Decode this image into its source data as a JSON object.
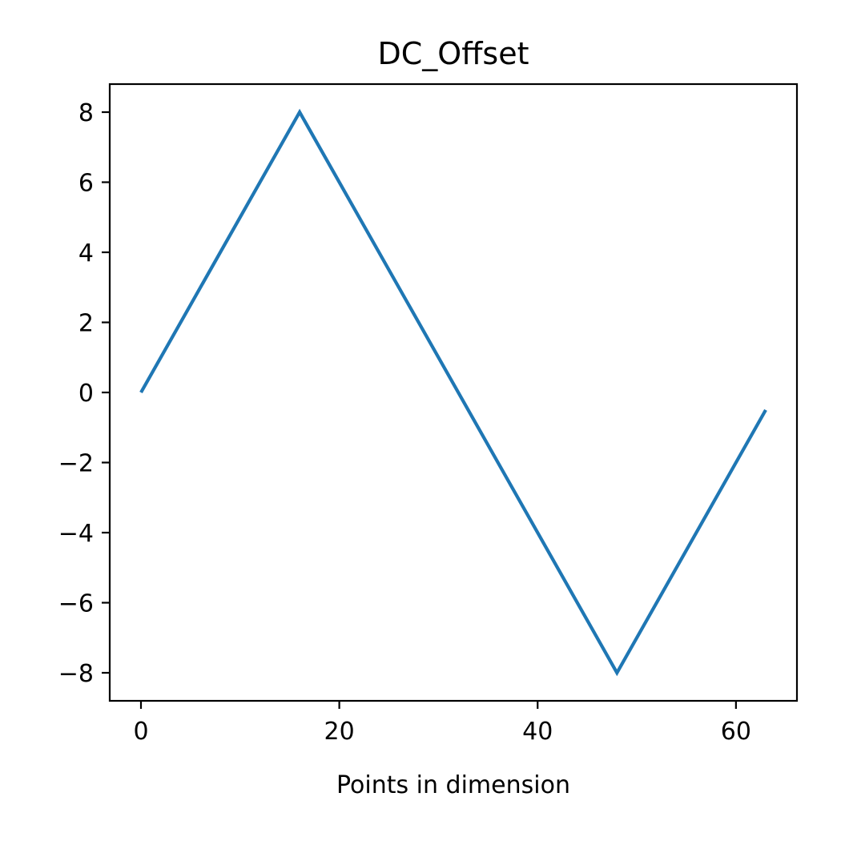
{
  "chart_data": {
    "type": "line",
    "title": "DC_Offset",
    "xlabel": "Points in dimension",
    "ylabel": "",
    "xlim": [
      -3.15,
      66.15
    ],
    "ylim": [
      -8.8,
      8.8
    ],
    "xticks": [
      0,
      20,
      40,
      60
    ],
    "yticks": [
      8,
      6,
      4,
      2,
      0,
      -2,
      -4,
      -6,
      -8
    ],
    "xtick_labels": [
      "0",
      "20",
      "40",
      "60"
    ],
    "ytick_labels": [
      "8",
      "6",
      "4",
      "2",
      "0",
      "−2",
      "−4",
      "−6",
      "−8"
    ],
    "grid": false,
    "legend": "none",
    "series": [
      {
        "color": "#1f77b4",
        "x": [
          0,
          16,
          48,
          63
        ],
        "y": [
          0,
          8,
          -8,
          -0.5
        ]
      }
    ]
  }
}
